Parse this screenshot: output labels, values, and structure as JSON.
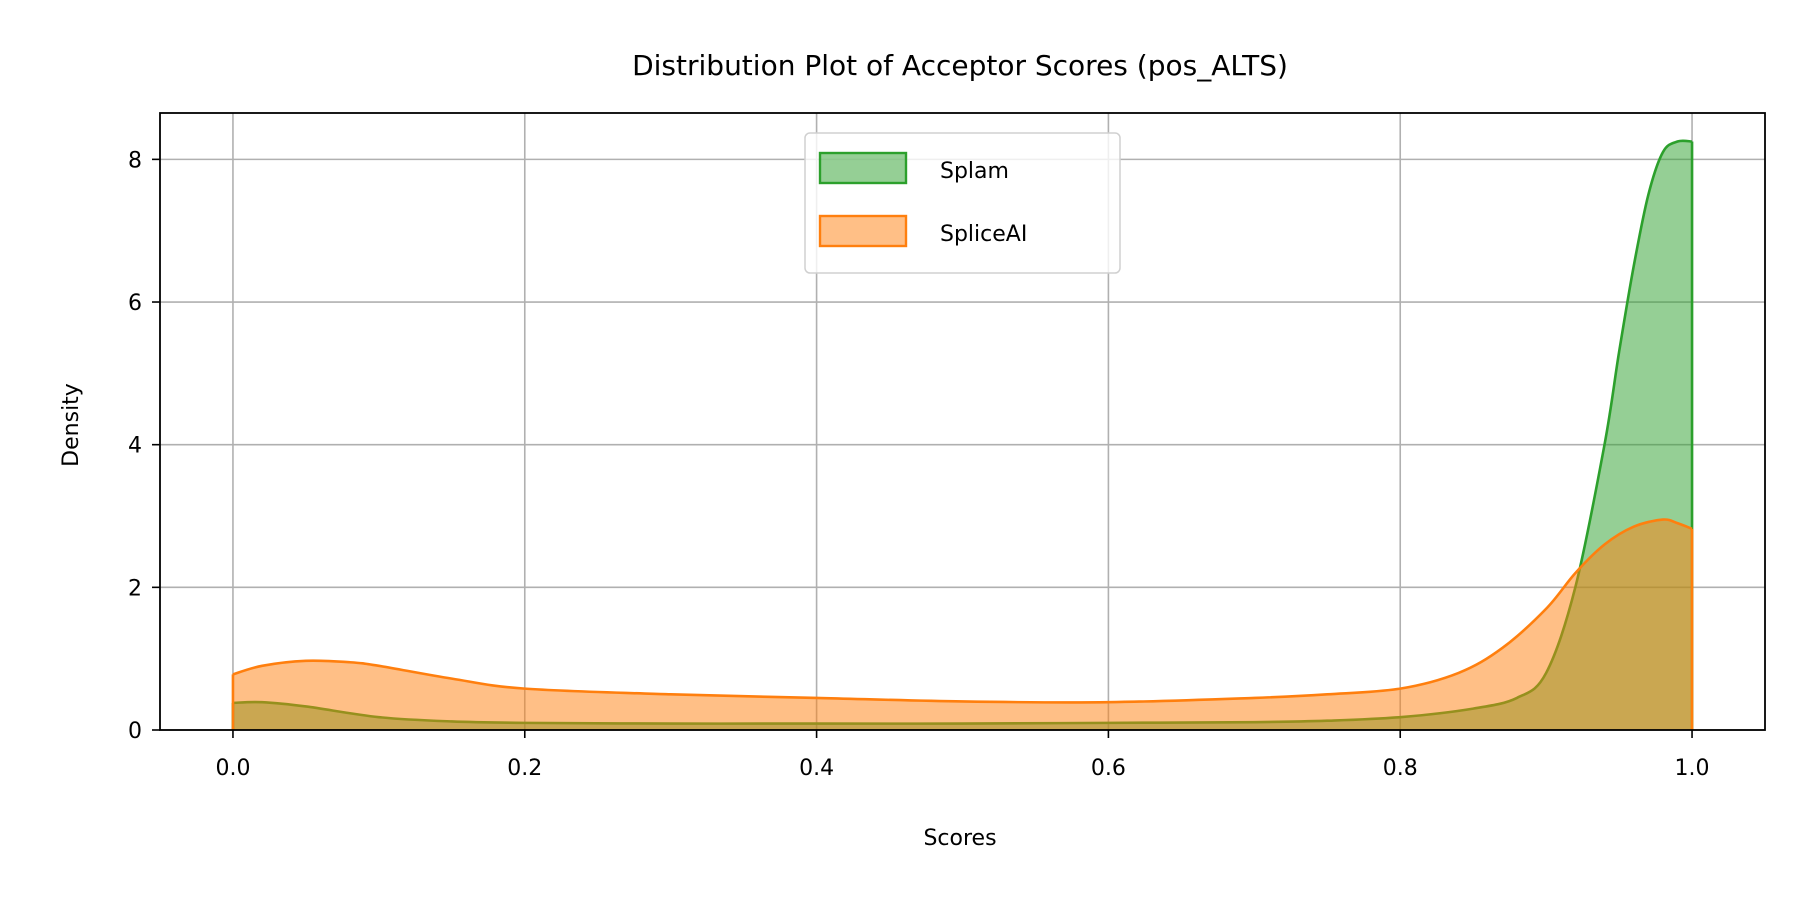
{
  "chart_data": {
    "type": "area",
    "title": "Distribution Plot of Acceptor Scores (pos_ALTS)",
    "xlabel": "Scores",
    "ylabel": "Density",
    "xlim": [
      -0.05,
      1.05
    ],
    "ylim": [
      0,
      8.65
    ],
    "xticks": [
      0.0,
      0.2,
      0.4,
      0.6,
      0.8,
      1.0
    ],
    "xtick_labels": [
      "0.0",
      "0.2",
      "0.4",
      "0.6",
      "0.8",
      "1.0"
    ],
    "yticks": [
      0,
      2,
      4,
      6,
      8
    ],
    "ytick_labels": [
      "0",
      "2",
      "4",
      "6",
      "8"
    ],
    "grid": true,
    "legend_position": "top-center",
    "series": [
      {
        "name": "Splam",
        "color": "#2ca02c",
        "fill": "#2ca02c",
        "x": [
          0.0,
          0.02,
          0.05,
          0.1,
          0.15,
          0.2,
          0.3,
          0.4,
          0.5,
          0.6,
          0.7,
          0.75,
          0.8,
          0.85,
          0.88,
          0.9,
          0.92,
          0.94,
          0.95,
          0.96,
          0.97,
          0.98,
          0.99,
          1.0
        ],
        "y": [
          0.38,
          0.39,
          0.33,
          0.18,
          0.12,
          0.1,
          0.09,
          0.09,
          0.09,
          0.1,
          0.11,
          0.13,
          0.18,
          0.3,
          0.45,
          0.8,
          2.0,
          4.0,
          5.3,
          6.5,
          7.5,
          8.1,
          8.25,
          8.25
        ]
      },
      {
        "name": "SpliceAI",
        "color": "#ff7f0e",
        "fill": "#ff7f0e",
        "x": [
          0.0,
          0.02,
          0.05,
          0.08,
          0.1,
          0.15,
          0.2,
          0.3,
          0.4,
          0.5,
          0.6,
          0.7,
          0.75,
          0.8,
          0.84,
          0.87,
          0.9,
          0.92,
          0.94,
          0.96,
          0.98,
          0.99,
          1.0
        ],
        "y": [
          0.78,
          0.9,
          0.97,
          0.95,
          0.9,
          0.72,
          0.58,
          0.5,
          0.45,
          0.4,
          0.39,
          0.45,
          0.5,
          0.58,
          0.8,
          1.15,
          1.7,
          2.2,
          2.6,
          2.85,
          2.95,
          2.9,
          2.82
        ]
      }
    ]
  }
}
